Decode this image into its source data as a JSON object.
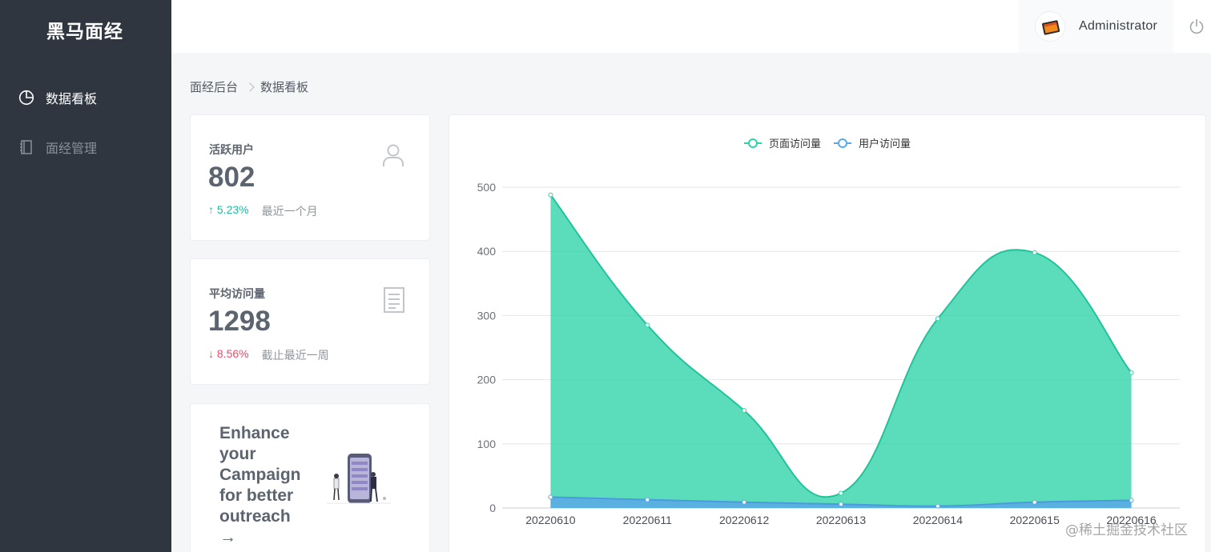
{
  "app": {
    "logo": "黑马面经"
  },
  "sidebar": {
    "items": [
      {
        "label": "数据看板",
        "icon": "pie-chart-icon",
        "active": true
      },
      {
        "label": "面经管理",
        "icon": "notebook-icon",
        "active": false
      }
    ]
  },
  "header": {
    "username": "Administrator"
  },
  "breadcrumb": {
    "root": "面经后台",
    "current": "数据看板"
  },
  "stats": [
    {
      "title": "活跃用户",
      "value": "802",
      "trend": "↑ 5.23%",
      "trend_dir": "up",
      "desc": "最近一个月",
      "icon": "user-icon"
    },
    {
      "title": "平均访问量",
      "value": "1298",
      "trend": "↓ 8.56%",
      "trend_dir": "down",
      "desc": "截止最近一周",
      "icon": "document-icon"
    }
  ],
  "promo": {
    "lines": [
      "Enhance",
      "your",
      "Campaign",
      "for better",
      "outreach",
      "→"
    ]
  },
  "watermark": "@稀土掘金技术社区",
  "colors": {
    "sidebar": "#2f3640",
    "page_series": "#2dd4a8",
    "user_series": "#5aa9e6",
    "up": "#1dbf9f",
    "down": "#e6506a"
  },
  "chart_data": {
    "type": "area",
    "x": [
      "20220610",
      "20220611",
      "20220612",
      "20220613",
      "20220614",
      "20220615",
      "20220616"
    ],
    "series": [
      {
        "name": "页面访问量",
        "values": [
          488,
          285,
          152,
          23,
          295,
          398,
          211
        ],
        "color": "#2dd4a8"
      },
      {
        "name": "用户访问量",
        "values": [
          17,
          13,
          9,
          6,
          3,
          9,
          12
        ],
        "color": "#5aa9e6"
      }
    ],
    "ylim": [
      0,
      500
    ],
    "yticks": [
      0,
      100,
      200,
      300,
      400,
      500
    ],
    "grid": true,
    "legend": "top-center"
  }
}
